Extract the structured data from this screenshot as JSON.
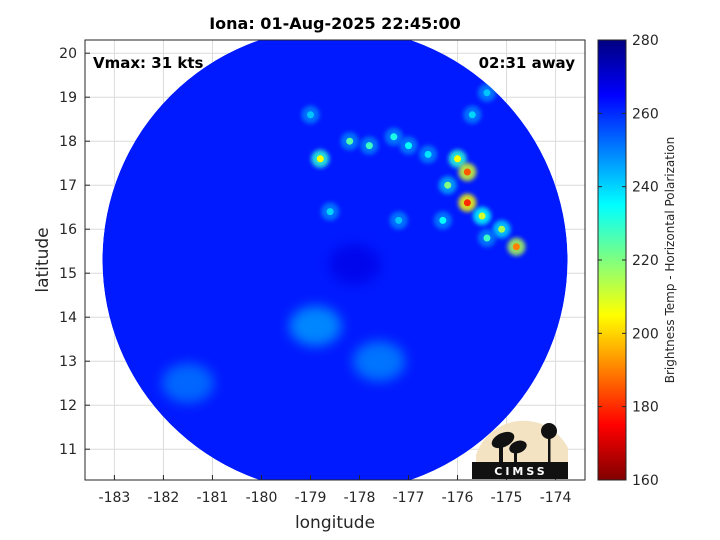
{
  "chart_data": {
    "type": "heatmap",
    "title": "Iona: 01-Aug-2025 22:45:00",
    "xlabel": "longitude",
    "ylabel": "latitude",
    "xlim": [
      -183.6,
      -173.4
    ],
    "ylim": [
      10.3,
      20.3
    ],
    "xticks": [
      -183,
      -182,
      -181,
      -180,
      -179,
      -178,
      -177,
      -176,
      -175,
      -174
    ],
    "yticks": [
      11,
      12,
      13,
      14,
      15,
      16,
      17,
      18,
      19,
      20
    ],
    "grid": true,
    "colorbar": {
      "label": "Brightness Temp - Horizontal Polarization",
      "range": [
        160,
        280
      ],
      "ticks": [
        160,
        180,
        200,
        220,
        240,
        260,
        280
      ],
      "colormap": "jet"
    },
    "annotations": {
      "vmax": "Vmax: 31 kts",
      "time_away": "02:31 away"
    },
    "swath": {
      "center_lon": -178.5,
      "center_lat": 15.3,
      "radius_deg": 5.0,
      "background_value": 262
    },
    "features": [
      {
        "kind": "warm_patch",
        "lon": -178.9,
        "lat": 13.8,
        "value": 245
      },
      {
        "kind": "warm_patch",
        "lon": -177.6,
        "lat": 13.0,
        "value": 248
      },
      {
        "kind": "warm_patch",
        "lon": -181.5,
        "lat": 12.5,
        "value": 250
      },
      {
        "kind": "cold_core",
        "lon": -178.1,
        "lat": 15.2,
        "value": 268
      }
    ],
    "rainband_points": [
      {
        "lon": -178.8,
        "lat": 17.6,
        "value": 205
      },
      {
        "lon": -178.2,
        "lat": 18.0,
        "value": 225
      },
      {
        "lon": -177.8,
        "lat": 17.9,
        "value": 228
      },
      {
        "lon": -177.3,
        "lat": 18.1,
        "value": 232
      },
      {
        "lon": -177.0,
        "lat": 17.9,
        "value": 235
      },
      {
        "lon": -176.6,
        "lat": 17.7,
        "value": 238
      },
      {
        "lon": -176.0,
        "lat": 17.6,
        "value": 205
      },
      {
        "lon": -175.8,
        "lat": 17.3,
        "value": 185
      },
      {
        "lon": -176.2,
        "lat": 17.0,
        "value": 220
      },
      {
        "lon": -175.8,
        "lat": 16.6,
        "value": 180
      },
      {
        "lon": -175.5,
        "lat": 16.3,
        "value": 210
      },
      {
        "lon": -175.1,
        "lat": 16.0,
        "value": 215
      },
      {
        "lon": -174.8,
        "lat": 15.6,
        "value": 190
      },
      {
        "lon": -175.4,
        "lat": 15.8,
        "value": 228
      },
      {
        "lon": -176.3,
        "lat": 16.2,
        "value": 235
      },
      {
        "lon": -177.2,
        "lat": 16.2,
        "value": 242
      },
      {
        "lon": -178.6,
        "lat": 16.4,
        "value": 240
      },
      {
        "lon": -175.7,
        "lat": 18.6,
        "value": 240
      },
      {
        "lon": -175.4,
        "lat": 19.1,
        "value": 242
      },
      {
        "lon": -179.0,
        "lat": 18.6,
        "value": 242
      }
    ]
  },
  "logo": {
    "text": "CIMSS"
  }
}
